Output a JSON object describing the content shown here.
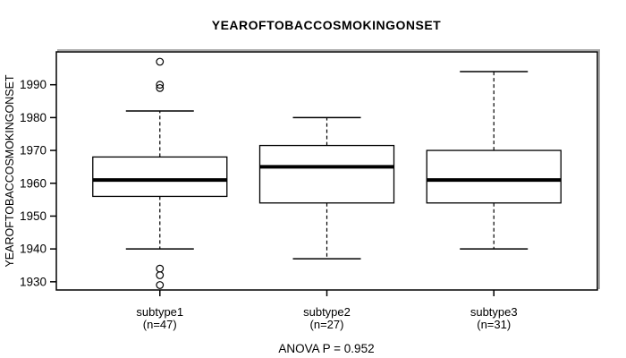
{
  "chart_data": {
    "type": "boxplot",
    "title": "YEAROFTOBACCOSMOKINGONSET",
    "ylabel": "YEAROFTOBACCOSMOKINGONSET",
    "annotation": "ANOVA P = 0.952",
    "anova_p": 0.952,
    "ylim": [
      1927.5,
      2000
    ],
    "yticks": [
      1930,
      1940,
      1950,
      1960,
      1970,
      1980,
      1990
    ],
    "grid": false,
    "legend": "none",
    "groups": [
      {
        "label": "subtype1",
        "sublabel": "(n=47)",
        "n": 47,
        "whisker_low": 1940,
        "q1": 1956,
        "median": 1961,
        "q3": 1968,
        "whisker_high": 1982,
        "outliers": [
          1997,
          1990,
          1989,
          1934,
          1932,
          1929
        ]
      },
      {
        "label": "subtype2",
        "sublabel": "(n=27)",
        "n": 27,
        "whisker_low": 1937,
        "q1": 1954,
        "median": 1965,
        "q3": 1971.5,
        "whisker_high": 1980,
        "outliers": []
      },
      {
        "label": "subtype3",
        "sublabel": "(n=31)",
        "n": 31,
        "whisker_low": 1940,
        "q1": 1954,
        "median": 1961,
        "q3": 1970,
        "whisker_high": 1994,
        "outliers": []
      }
    ],
    "colors": {
      "line": "#000000",
      "box_fill": "#ffffff",
      "background": "#ffffff",
      "border_shadow": "#a8a8a8"
    }
  }
}
